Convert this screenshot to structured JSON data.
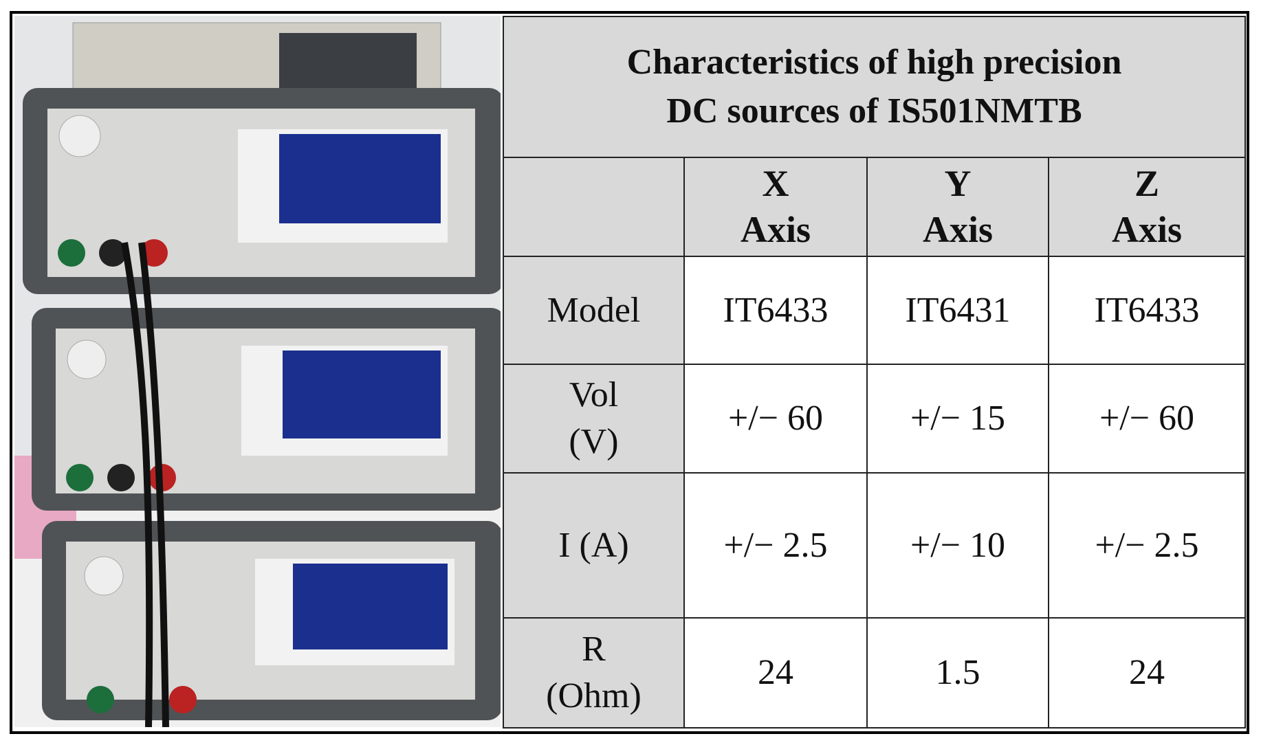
{
  "table": {
    "title": [
      "Characteristics of high precision",
      "DC sources of  IS501NMTB"
    ],
    "columns": [
      {
        "letter": "X",
        "word": "Axis"
      },
      {
        "letter": "Y",
        "word": "Axis"
      },
      {
        "letter": "Z",
        "word": "Axis"
      }
    ],
    "rows": [
      {
        "label": [
          "Model"
        ],
        "cells": [
          "IT6433",
          "IT6431",
          "IT6433"
        ]
      },
      {
        "label": [
          "Vol",
          "(V)"
        ],
        "cells": [
          "+/− 60",
          "+/− 15",
          "+/− 60"
        ]
      },
      {
        "label": [
          "I (A)"
        ],
        "cells": [
          "+/− 2.5",
          "+/− 10",
          "+/− 2.5"
        ]
      },
      {
        "label": [
          "R",
          "(Ohm)"
        ],
        "cells": [
          "24",
          "1.5",
          "24"
        ]
      }
    ]
  }
}
